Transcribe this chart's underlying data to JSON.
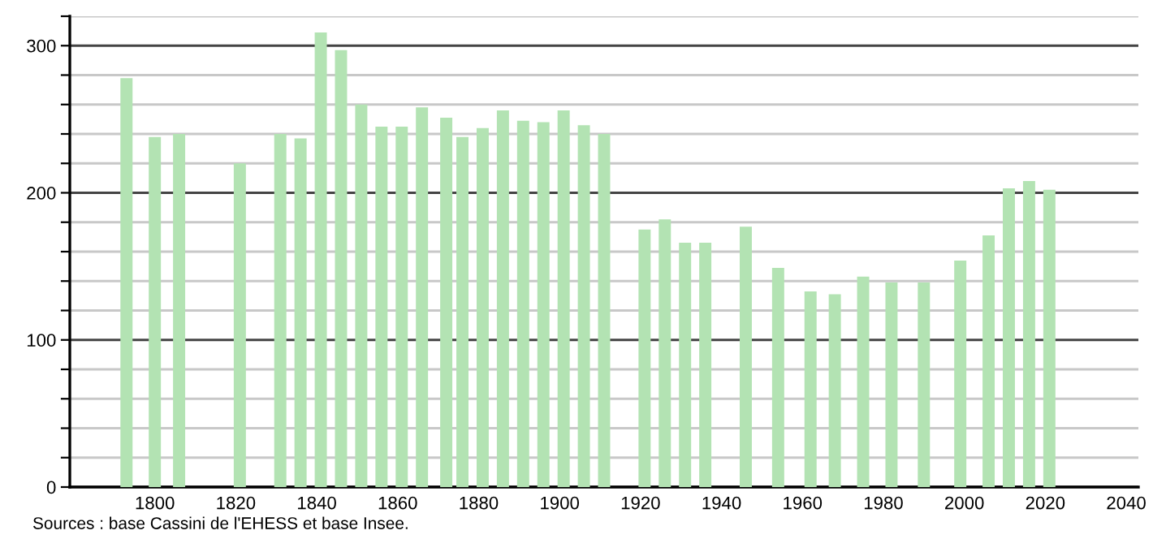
{
  "chart_data": {
    "type": "bar",
    "x": [
      1793,
      1800,
      1806,
      1821,
      1831,
      1836,
      1841,
      1846,
      1851,
      1856,
      1861,
      1866,
      1872,
      1876,
      1881,
      1886,
      1891,
      1896,
      1901,
      1906,
      1911,
      1921,
      1926,
      1931,
      1936,
      1946,
      1954,
      1962,
      1968,
      1975,
      1982,
      1990,
      1999,
      2006,
      2011,
      2016,
      2021
    ],
    "values": [
      278,
      238,
      240,
      220,
      240,
      237,
      309,
      297,
      260,
      245,
      245,
      258,
      251,
      238,
      244,
      256,
      249,
      248,
      256,
      246,
      240,
      175,
      182,
      166,
      166,
      177,
      149,
      133,
      131,
      143,
      139,
      139,
      154,
      171,
      203,
      208,
      202
    ],
    "color": "#b3e3b3",
    "xlim": [
      1779,
      2043
    ],
    "xticks": [
      1800,
      1820,
      1840,
      1860,
      1880,
      1900,
      1920,
      1940,
      1960,
      1980,
      2000,
      2020,
      2040
    ],
    "ylim": [
      0,
      320
    ],
    "yticks": [
      0,
      {
        "value": 20,
        "label": null
      },
      {
        "value": 40,
        "label": null
      },
      {
        "value": 60,
        "label": null
      },
      {
        "value": 80,
        "label": null
      },
      100,
      {
        "value": 120,
        "label": null
      },
      {
        "value": 140,
        "label": null
      },
      {
        "value": 160,
        "label": null
      },
      {
        "value": 180,
        "label": null
      },
      200,
      {
        "value": 220,
        "label": null
      },
      {
        "value": 240,
        "label": null
      },
      {
        "value": 260,
        "label": null
      },
      {
        "value": 280,
        "label": null
      },
      300,
      {
        "value": 320,
        "label": null
      }
    ],
    "grid": "y",
    "annotations": [
      "Sources : base Cassini de l'EHESS et base Insee."
    ]
  }
}
